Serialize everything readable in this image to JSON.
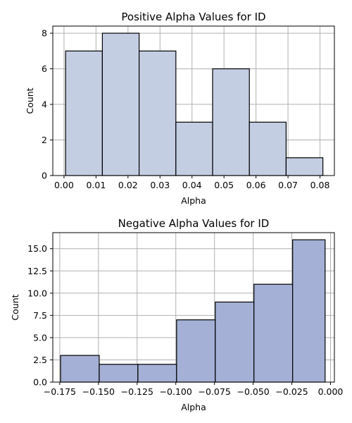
{
  "chart_data": [
    {
      "type": "bar",
      "title": "Positive Alpha Values for ID",
      "xlabel": "Alpha",
      "ylabel": "Count",
      "xlim": [
        -0.0035,
        0.0845
      ],
      "ylim": [
        0,
        8.4
      ],
      "xticks": [
        0.0,
        0.01,
        0.02,
        0.03,
        0.04,
        0.05,
        0.06,
        0.07,
        0.08
      ],
      "xtick_labels": [
        "0.00",
        "0.01",
        "0.02",
        "0.03",
        "0.04",
        "0.05",
        "0.06",
        "0.07",
        "0.08"
      ],
      "yticks": [
        0,
        2,
        4,
        6,
        8
      ],
      "ytick_labels": [
        "0",
        "2",
        "4",
        "6",
        "8"
      ],
      "bin_edges": [
        0.0005,
        0.01199,
        0.02347,
        0.03496,
        0.04644,
        0.05793,
        0.06941,
        0.0809
      ],
      "values": [
        7,
        8,
        7,
        3,
        6,
        3,
        1
      ],
      "bar_color": "#c4cee3",
      "grid": true
    },
    {
      "type": "bar",
      "title": "Negative Alpha Values for ID",
      "xlabel": "Alpha",
      "ylabel": "Count",
      "xlim": [
        -0.1795,
        0.0025
      ],
      "ylim": [
        0,
        16.8
      ],
      "xticks": [
        -0.175,
        -0.15,
        -0.125,
        -0.1,
        -0.075,
        -0.05,
        -0.025,
        0.0
      ],
      "xtick_labels": [
        "−0.175",
        "−0.150",
        "−0.125",
        "−0.100",
        "−0.075",
        "−0.050",
        "−0.025",
        "0.000"
      ],
      "yticks": [
        0,
        2.5,
        5,
        7.5,
        10,
        12.5,
        15
      ],
      "ytick_labels": [
        "0.0",
        "2.5",
        "5.0",
        "7.5",
        "10.0",
        "12.5",
        "15.0"
      ],
      "bin_edges": [
        -0.1745,
        -0.1495,
        -0.1245,
        -0.0995,
        -0.0745,
        -0.0495,
        -0.0245,
        -0.0035
      ],
      "values": [
        3,
        2,
        2,
        7,
        9,
        11,
        16
      ],
      "bar_color": "#a4b0d5",
      "grid": true
    }
  ]
}
